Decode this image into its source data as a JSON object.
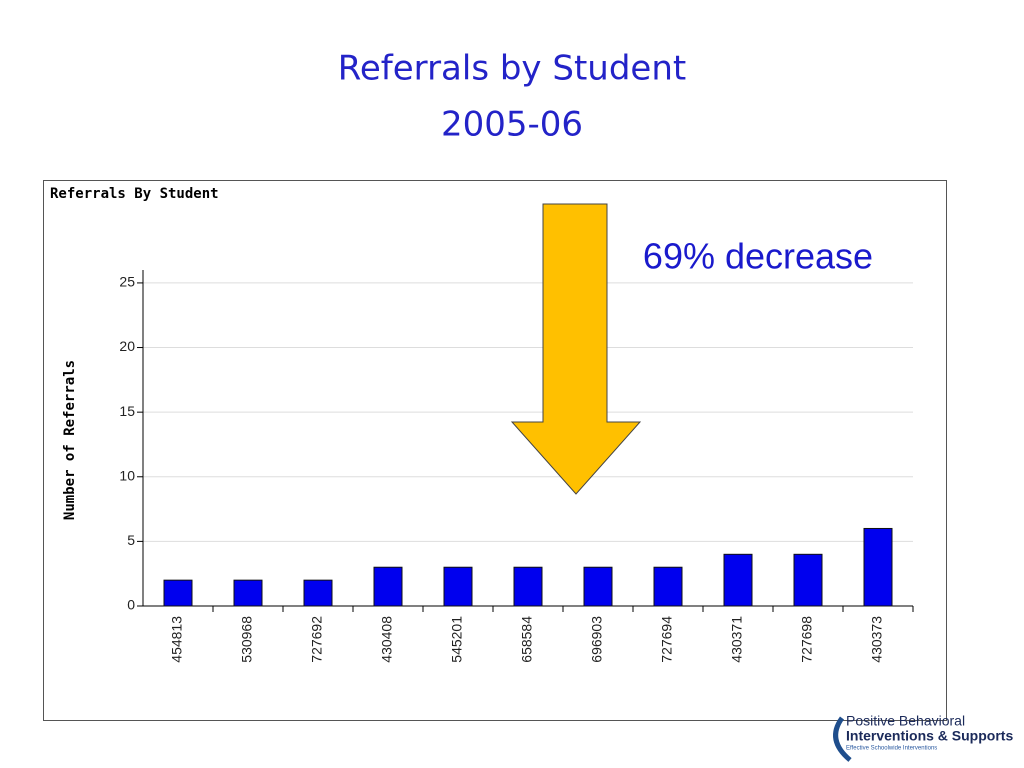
{
  "chart_data": {
    "type": "bar",
    "title": "Referrals by Student",
    "subtitle": "2005-06",
    "chart_title": "Referrals By Student",
    "y_label": "Number of Referrals",
    "annotation": "69% decrease",
    "categories": [
      "454813",
      "530968",
      "727692",
      "430408",
      "545201",
      "658584",
      "696903",
      "727694",
      "430371",
      "727698",
      "430373"
    ],
    "values": [
      2,
      2,
      2,
      3,
      3,
      3,
      3,
      3,
      4,
      4,
      6
    ],
    "color": "#0000ee",
    "ylim": [
      0,
      26
    ],
    "yticks": [
      0,
      5,
      10,
      15,
      20,
      25
    ],
    "grid": true
  },
  "logo": {
    "line1": "Positive Behavioral",
    "line2": "Interventions & Supports",
    "line3": "Effective Schoolwide Interventions"
  }
}
